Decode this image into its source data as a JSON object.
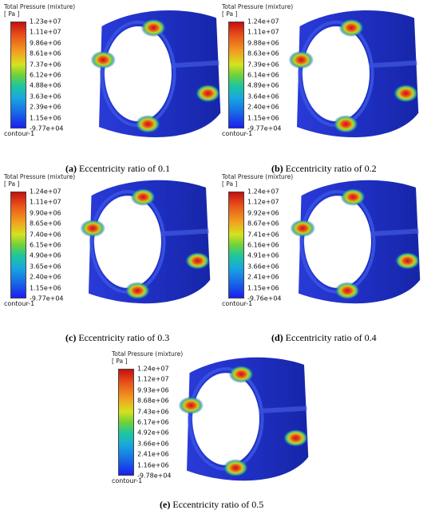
{
  "colorbar_title_line1": "Total Pressure (mixture)",
  "colorbar_title_line2": "[ Pa ]",
  "contour_label": "contour-1",
  "panels": [
    {
      "id": "a",
      "letter": "(a)",
      "caption": " Eccentricity ratio of 0.1",
      "ticks": [
        "1.23e+07",
        "1.11e+07",
        "9.86e+06",
        "8.61e+06",
        "7.37e+06",
        "6.12e+06",
        "4.88e+06",
        "3.63e+06",
        "2.39e+06",
        "1.15e+06",
        "-9.77e+04"
      ]
    },
    {
      "id": "b",
      "letter": "(b)",
      "caption": " Eccentricity ratio of 0.2",
      "ticks": [
        "1.24e+07",
        "1.11e+07",
        "9.88e+06",
        "8.63e+06",
        "7.39e+06",
        "6.14e+06",
        "4.89e+06",
        "3.64e+06",
        "2.40e+06",
        "1.15e+06",
        "-9.77e+04"
      ]
    },
    {
      "id": "c",
      "letter": "(c)",
      "caption": " Eccentricity ratio of 0.3",
      "ticks": [
        "1.24e+07",
        "1.11e+07",
        "9.90e+06",
        "8.65e+06",
        "7.40e+06",
        "6.15e+06",
        "4.90e+06",
        "3.65e+06",
        "2.40e+06",
        "1.15e+06",
        "-9.77e+04"
      ]
    },
    {
      "id": "d",
      "letter": "(d)",
      "caption": " Eccentricity ratio of 0.4",
      "ticks": [
        "1.24e+07",
        "1.12e+07",
        "9.92e+06",
        "8.67e+06",
        "7.41e+06",
        "6.16e+06",
        "4.91e+06",
        "3.66e+06",
        "2.41e+06",
        "1.15e+06",
        "-9.76e+04"
      ]
    },
    {
      "id": "e",
      "letter": "(e)",
      "caption": " Eccentricity ratio of 0.5",
      "ticks": [
        "1.24e+07",
        "1.12e+07",
        "9.93e+06",
        "8.68e+06",
        "7.43e+06",
        "6.17e+06",
        "4.92e+06",
        "3.66e+06",
        "2.41e+06",
        "1.16e+06",
        "-9.78e+04"
      ]
    }
  ],
  "colors": {
    "surface": "#2030c8",
    "hot": "#d23a1a"
  }
}
